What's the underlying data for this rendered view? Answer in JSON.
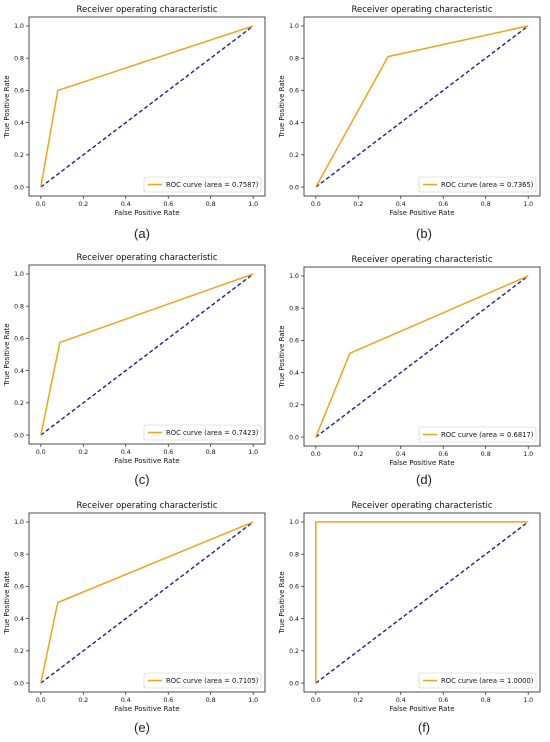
{
  "chart_data": [
    {
      "type": "line",
      "title": "Receiver operating characteristic",
      "xlabel": "False Positive Rate",
      "ylabel": "True Positive Rate",
      "xlim": [
        0,
        1
      ],
      "ylim": [
        0,
        1
      ],
      "xticks": [
        "0.0",
        "0.2",
        "0.4",
        "0.6",
        "0.8",
        "1.0"
      ],
      "yticks": [
        "0.0",
        "0.2",
        "0.4",
        "0.6",
        "0.8",
        "1.0"
      ],
      "legend_position": "lower-right",
      "caption": "(a)",
      "series": [
        {
          "name": "ROC curve (area = 0.7587)",
          "color": "#f5a21b",
          "x": [
            0,
            0.08,
            1
          ],
          "y": [
            0,
            0.6,
            1
          ]
        },
        {
          "color": "#1f1f8f",
          "style": "dashed",
          "x": [
            0,
            1
          ],
          "y": [
            0,
            1
          ]
        }
      ]
    },
    {
      "type": "line",
      "title": "Receiver operating characteristic",
      "xlabel": "False Positive Rate",
      "ylabel": "True Positive Rate",
      "xlim": [
        0,
        1
      ],
      "ylim": [
        0,
        1
      ],
      "xticks": [
        "0.0",
        "0.2",
        "0.4",
        "0.6",
        "0.8",
        "1.0"
      ],
      "yticks": [
        "0.0",
        "0.2",
        "0.4",
        "0.6",
        "0.8",
        "1.0"
      ],
      "legend_position": "lower-right",
      "caption": "(b)",
      "series": [
        {
          "name": "ROC curve (area = 0.7365)",
          "color": "#f5a21b",
          "x": [
            0,
            0.34,
            1
          ],
          "y": [
            0,
            0.81,
            1
          ]
        },
        {
          "color": "#1f1f8f",
          "style": "dashed",
          "x": [
            0,
            1
          ],
          "y": [
            0,
            1
          ]
        }
      ]
    },
    {
      "type": "line",
      "title": "Receiver operating characteristic",
      "xlabel": "False Positive Rate",
      "ylabel": "True Positive Rate",
      "xlim": [
        0,
        1
      ],
      "ylim": [
        0,
        1
      ],
      "xticks": [
        "0.0",
        "0.2",
        "0.4",
        "0.6",
        "0.8",
        "1.0"
      ],
      "yticks": [
        "0.0",
        "0.2",
        "0.4",
        "0.6",
        "0.8",
        "1.0"
      ],
      "legend_position": "lower-right",
      "caption": "(c)",
      "series": [
        {
          "name": "ROC curve (area = 0.7423)",
          "color": "#f5a21b",
          "x": [
            0,
            0.09,
            1
          ],
          "y": [
            0,
            0.575,
            1
          ]
        },
        {
          "color": "#1f1f8f",
          "style": "dashed",
          "x": [
            0,
            1
          ],
          "y": [
            0,
            1
          ]
        }
      ]
    },
    {
      "type": "line",
      "title": "Receiver operating characteristic",
      "xlabel": "False Positive Rate",
      "ylabel": "True Positive Rate",
      "xlim": [
        0,
        1
      ],
      "ylim": [
        0,
        1
      ],
      "xticks": [
        "0.0",
        "0.2",
        "0.4",
        "0.6",
        "0.8",
        "1.0"
      ],
      "yticks": [
        "0.0",
        "0.2",
        "0.4",
        "0.6",
        "0.8",
        "1.0"
      ],
      "legend_position": "lower-right",
      "caption": "(d)",
      "series": [
        {
          "name": "ROC curve (area = 0.6817)",
          "color": "#f5a21b",
          "x": [
            0,
            0.16,
            1
          ],
          "y": [
            0,
            0.52,
            1
          ]
        },
        {
          "color": "#1f1f8f",
          "style": "dashed",
          "x": [
            0,
            1
          ],
          "y": [
            0,
            1
          ]
        }
      ]
    },
    {
      "type": "line",
      "title": "Receiver operating characteristic",
      "xlabel": "False Positive Rate",
      "ylabel": "True Positive Rate",
      "xlim": [
        0,
        1
      ],
      "ylim": [
        0,
        1
      ],
      "xticks": [
        "0.0",
        "0.2",
        "0.4",
        "0.6",
        "0.8",
        "1.0"
      ],
      "yticks": [
        "0.0",
        "0.2",
        "0.4",
        "0.6",
        "0.8",
        "1.0"
      ],
      "legend_position": "lower-right",
      "caption": "(e)",
      "series": [
        {
          "name": "ROC curve (area = 0.7105)",
          "color": "#f5a21b",
          "x": [
            0,
            0.08,
            1
          ],
          "y": [
            0,
            0.5,
            1
          ]
        },
        {
          "color": "#1f1f8f",
          "style": "dashed",
          "x": [
            0,
            1
          ],
          "y": [
            0,
            1
          ]
        }
      ]
    },
    {
      "type": "line",
      "title": "Receiver operating characteristic",
      "xlabel": "False Positive Rate",
      "ylabel": "True Positive Rate",
      "xlim": [
        0,
        1
      ],
      "ylim": [
        0,
        1
      ],
      "xticks": [
        "0.0",
        "0.2",
        "0.4",
        "0.6",
        "0.8",
        "1.0"
      ],
      "yticks": [
        "0.0",
        "0.2",
        "0.4",
        "0.6",
        "0.8",
        "1.0"
      ],
      "legend_position": "lower-right",
      "caption": "(f)",
      "series": [
        {
          "name": "ROC curve (area = 1.0000)",
          "color": "#f5a21b",
          "x": [
            0,
            0,
            1
          ],
          "y": [
            0,
            1,
            1
          ]
        },
        {
          "color": "#1f1f8f",
          "style": "dashed",
          "x": [
            0,
            1
          ],
          "y": [
            0,
            1
          ]
        }
      ]
    }
  ]
}
